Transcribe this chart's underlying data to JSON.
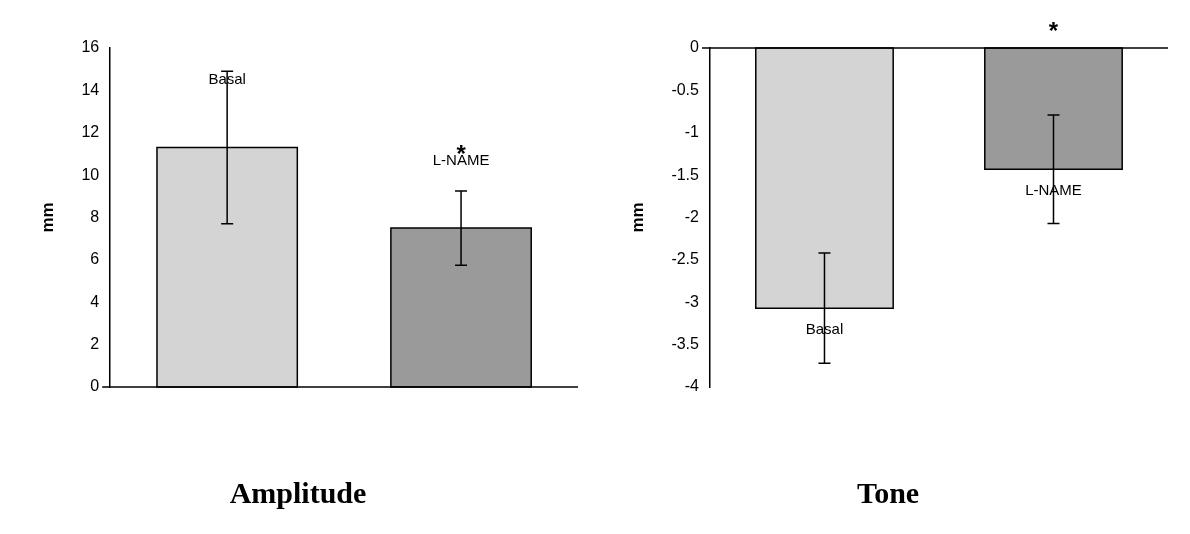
{
  "chart_data": [
    {
      "type": "bar",
      "title": "Amplitude",
      "ylabel": "mm",
      "categories": [
        "Basal",
        "L-NAME"
      ],
      "colors": [
        "#d4d4d4",
        "#9a9a9a"
      ],
      "values": [
        11.3,
        7.5
      ],
      "errors": [
        3.6,
        1.75
      ],
      "ylim": [
        0,
        16
      ],
      "yticks": [
        0,
        2,
        4,
        6,
        8,
        10,
        12,
        14,
        16
      ],
      "tick_labels": "y",
      "grid": false,
      "legend": false,
      "annotations": [
        {
          "text": "*",
          "x": "L-NAME",
          "y": 7.5
        }
      ]
    },
    {
      "type": "bar",
      "title": "Tone",
      "ylabel": "mm",
      "categories": [
        "Basal",
        "L-NAME"
      ],
      "colors": [
        "#d4d4d4",
        "#9a9a9a"
      ],
      "values": [
        -3.07,
        -1.43
      ],
      "errors": [
        0.65,
        0.64
      ],
      "ylim": [
        -4,
        0
      ],
      "yticks": [
        -4,
        -3.5,
        -3,
        -2.5,
        -2,
        -1.5,
        -1,
        -0.5,
        0
      ],
      "tick_labels": "y",
      "grid": false,
      "legend": false,
      "annotations": [
        "*"
      ]
    }
  ]
}
